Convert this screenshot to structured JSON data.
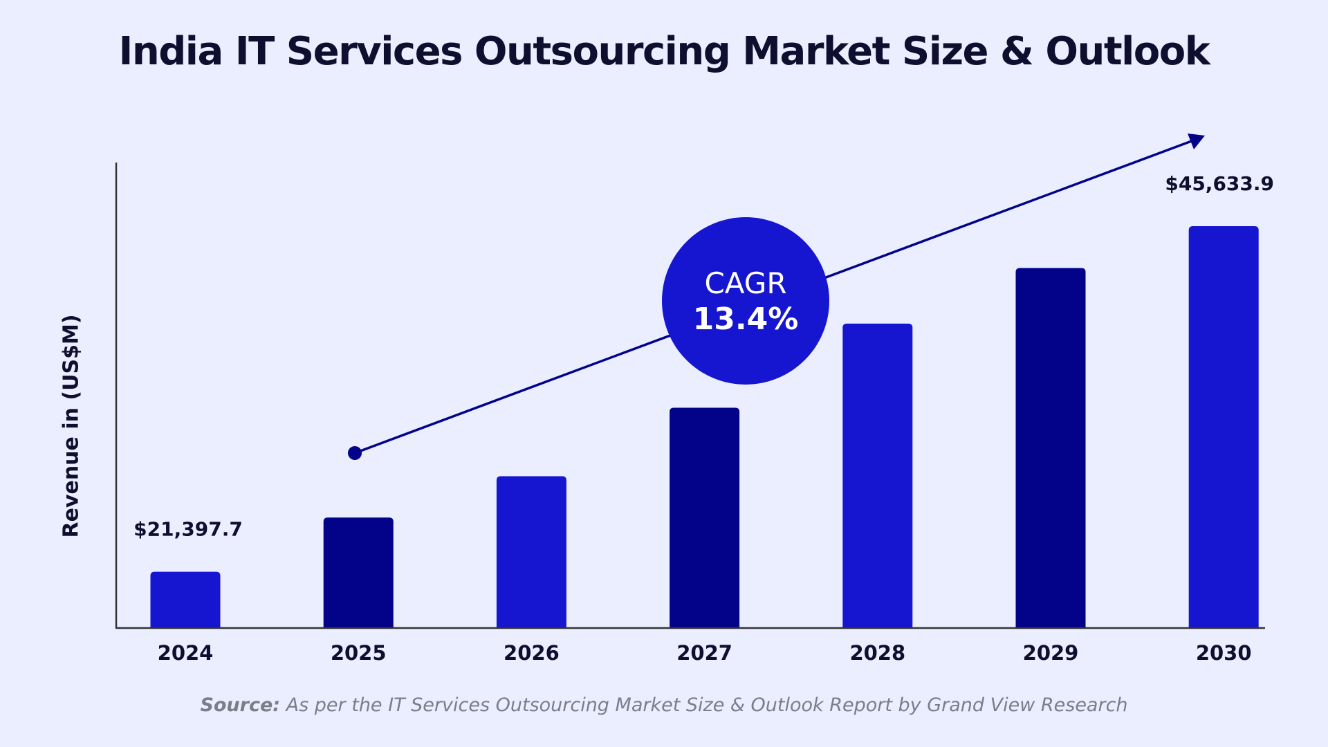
{
  "chart_data": {
    "type": "bar",
    "title": "India IT Services Outsourcing Market Size & Outlook",
    "ylabel": "Revenue in (US$M)",
    "xlabel": "",
    "categories": [
      "2024",
      "2025",
      "2026",
      "2027",
      "2028",
      "2029",
      "2030"
    ],
    "values": [
      21397.7,
      25200,
      28100,
      32900,
      38800,
      42700,
      45633.9
    ],
    "data_labels": {
      "2024": "$21,397.7",
      "2030": "$45,633.9"
    },
    "ylim": [
      17500,
      50100
    ],
    "grid": false,
    "bar_colors": [
      "#1616D0",
      "#03038A",
      "#1616D0",
      "#03038A",
      "#1616D0",
      "#03038A",
      "#1616D0"
    ],
    "annotation": {
      "label": "CAGR",
      "value": "13.4%",
      "color": "#1616D0",
      "arrow_color": "#03038A"
    }
  },
  "source": {
    "prefix": "Source:",
    "text": " As per the IT Services Outsourcing Market Size & Outlook Report by Grand View Research"
  },
  "colors": {
    "background": "#EAEEFE",
    "primary": "#1616D0",
    "dark": "#03038A"
  }
}
